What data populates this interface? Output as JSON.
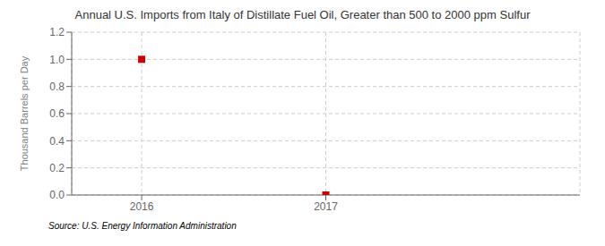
{
  "chart_data": {
    "type": "scatter",
    "title": "Annual U.S. Imports from Italy of Distillate Fuel Oil, Greater than 500 to 2000 ppm Sulfur",
    "ylabel": "Thousand Barrels per Day",
    "source": "Source: U.S. Energy Information Administration",
    "x": [
      2016,
      2017
    ],
    "values": [
      1.0,
      0.0
    ],
    "xlim": [
      2015.62,
      2018.38
    ],
    "ylim": [
      0.0,
      1.2
    ],
    "xticks": [
      2016,
      2017
    ],
    "yticks": [
      {
        "value": 0.0,
        "label": "0.0"
      },
      0.2,
      0.4,
      0.6,
      0.8,
      {
        "value": 1.0,
        "label": "1.0"
      },
      1.2
    ],
    "color": "#cc0000",
    "marker": "square",
    "grid": true
  }
}
